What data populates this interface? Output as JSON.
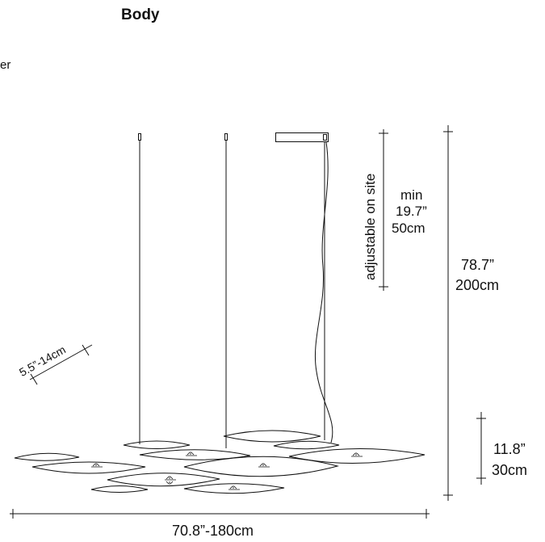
{
  "title": "Body",
  "side_fragment": "er",
  "dimensions": {
    "adjustable": "adjustable on site",
    "min_label": "min",
    "min_in": "19.7”",
    "min_cm": "50cm",
    "height_in": "78.7”",
    "height_cm": "200cm",
    "canopy_in": "11.8”",
    "canopy_cm": "30cm",
    "width": "70.8”-180cm",
    "depth": "5.5”-14cm"
  }
}
